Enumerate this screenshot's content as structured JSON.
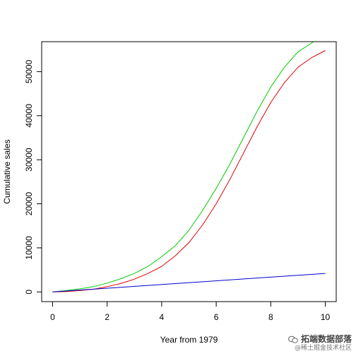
{
  "chart_data": {
    "type": "line",
    "title": "",
    "xlabel": "Year from 1979",
    "ylabel": "Cumulative sales",
    "xlim": [
      -0.4,
      10.4
    ],
    "ylim": [
      -2200,
      56800
    ],
    "xticks": [
      "0",
      "2",
      "4",
      "6",
      "8",
      "10"
    ],
    "yticks": [
      "0",
      "10000",
      "20000",
      "30000",
      "40000",
      "50000"
    ],
    "series": [
      {
        "color": "#00cc00",
        "x": [
          0,
          0.5,
          1,
          1.5,
          2,
          2.5,
          3,
          3.5,
          4,
          4.5,
          5,
          5.5,
          6,
          6.5,
          7,
          7.5,
          8,
          8.5,
          9,
          9.5,
          9.6
        ],
        "y": [
          0,
          300,
          700,
          1200,
          2000,
          3000,
          4200,
          5800,
          8000,
          10500,
          14000,
          18500,
          23500,
          29000,
          35000,
          41000,
          46500,
          51000,
          54500,
          56500,
          57000
        ]
      },
      {
        "color": "#dd0000",
        "x": [
          0,
          0.5,
          1,
          1.5,
          2,
          2.5,
          3,
          3.5,
          4,
          4.5,
          5,
          5.5,
          6,
          6.5,
          7,
          7.5,
          8,
          8.5,
          9,
          9.5,
          10
        ],
        "y": [
          0,
          100,
          300,
          600,
          1200,
          1900,
          2900,
          4200,
          5800,
          8200,
          11200,
          15200,
          20000,
          25500,
          31500,
          37500,
          43000,
          47500,
          51000,
          53200,
          54800
        ]
      },
      {
        "color": "#0000cc",
        "x": [
          0,
          10
        ],
        "y": [
          0,
          4200
        ]
      }
    ]
  },
  "watermark": {
    "line1": "拓端数据部落",
    "line2": "@稀土掘金技术社区"
  }
}
